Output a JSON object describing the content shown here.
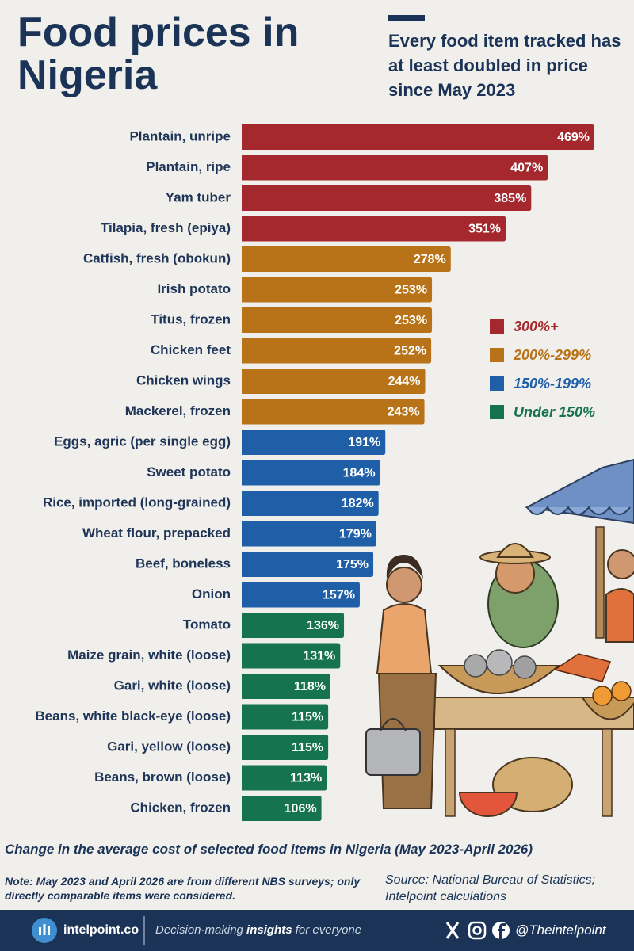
{
  "chart_data": {
    "type": "bar",
    "orientation": "horizontal",
    "title": "Food prices in Nigeria",
    "subtitle": "Every food item tracked has at least doubled in price since May 2023",
    "categories": [
      "Plantain, unripe",
      "Plantain, ripe",
      "Yam tuber",
      "Tilapia, fresh (epiya)",
      "Catfish, fresh (obokun)",
      "Irish potato",
      "Titus, frozen",
      "Chicken feet",
      "Chicken wings",
      "Mackerel, frozen",
      "Eggs, agric (per single egg)",
      "Sweet potato",
      "Rice, imported (long-grained)",
      "Wheat flour, prepacked",
      "Beef, boneless",
      "Onion",
      "Tomato",
      "Maize grain, white (loose)",
      "Gari, white (loose)",
      "Beans, white black-eye (loose)",
      "Gari, yellow (loose)",
      "Beans, brown (loose)",
      "Chicken, frozen"
    ],
    "values": [
      469,
      407,
      385,
      351,
      278,
      253,
      253,
      252,
      244,
      243,
      191,
      184,
      182,
      179,
      175,
      157,
      136,
      131,
      118,
      115,
      115,
      113,
      106
    ],
    "value_labels": [
      "469%",
      "407%",
      "385%",
      "351%",
      "278%",
      "253%",
      "253%",
      "252%",
      "244%",
      "243%",
      "191%",
      "184%",
      "182%",
      "179%",
      "175%",
      "157%",
      "136%",
      "131%",
      "118%",
      "115%",
      "115%",
      "113%",
      "106%"
    ],
    "colors": [
      "#a4282d",
      "#a4282d",
      "#a4282d",
      "#a4282d",
      "#b87318",
      "#b87318",
      "#b87318",
      "#b87318",
      "#b87318",
      "#b87318",
      "#1e5fa8",
      "#1e5fa8",
      "#1e5fa8",
      "#1e5fa8",
      "#1e5fa8",
      "#1e5fa8",
      "#157350",
      "#157350",
      "#157350",
      "#157350",
      "#157350",
      "#157350",
      "#157350"
    ],
    "legend": [
      {
        "name": "300%+",
        "color": "#a4282d"
      },
      {
        "name": "200%-299%",
        "color": "#b87318"
      },
      {
        "name": "150%-199%",
        "color": "#1e5fa8"
      },
      {
        "name": "Under 150%",
        "color": "#157350"
      }
    ],
    "caption": "Change in the average cost of selected food items in Nigeria (May 2023-April 2026)",
    "note": "Note: May 2023 and April 2026 are from different NBS surveys; only directly comparable items were considered.",
    "source": "Source: National Bureau of Statistics; Intelpoint calculations"
  },
  "footer": {
    "brand": "intelpoint.co",
    "tagline": [
      "Decision-making ",
      "insights",
      " for everyone"
    ],
    "handle": "@Theintelpoint"
  }
}
